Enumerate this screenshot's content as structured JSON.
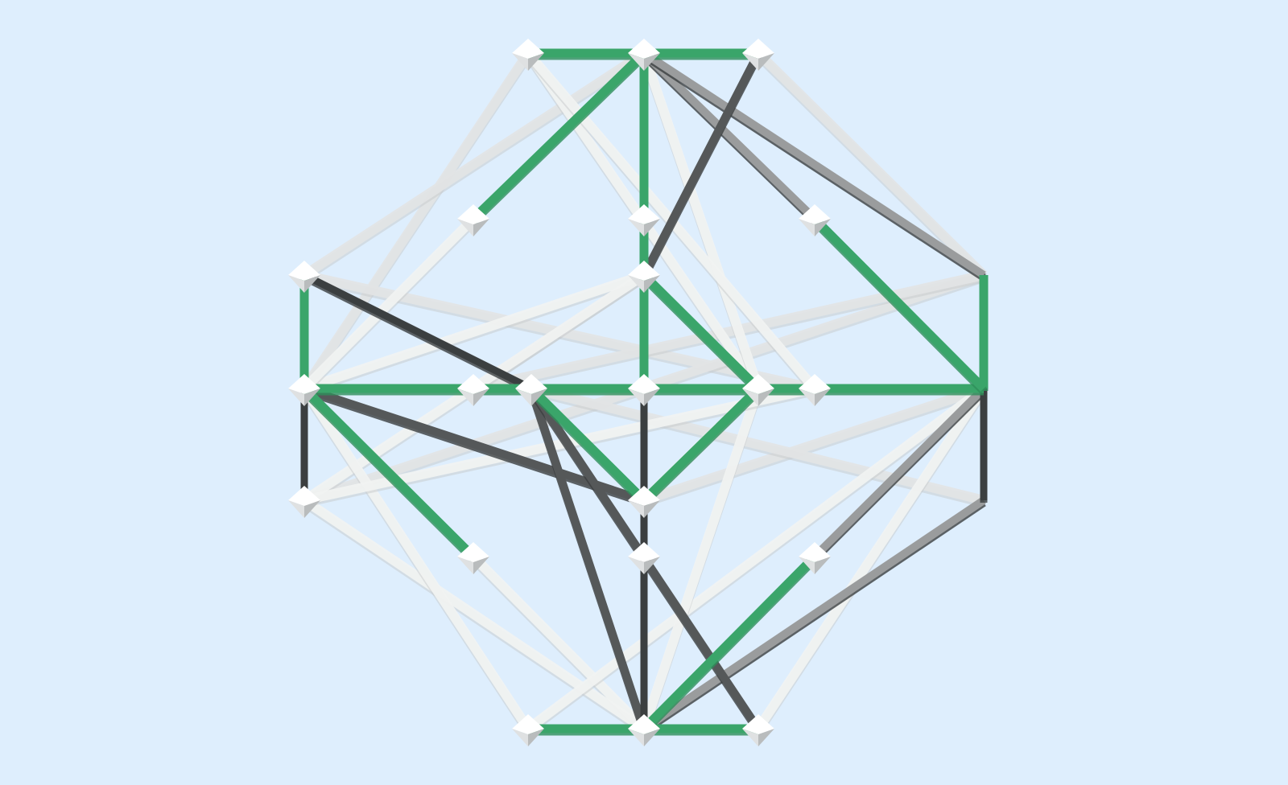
{
  "diagram": {
    "kind": "3d-strut-lattice",
    "background_color": "#deeefd",
    "colors": {
      "green_strut": "#3aa56a",
      "green_shade": "#2f8f5b",
      "white_strut": "#f2f4f3",
      "light_strut": "#e3e5e6",
      "mid_gray": "#9a9c9d",
      "dark_gray": "#555859",
      "darkest": "#3b3f40",
      "node_fill": "#ffffff",
      "node_shade": "#b9bcbd"
    },
    "icons": {
      "node": "octahedron-node-icon"
    },
    "nodes": [
      {
        "id": "T1"
      },
      {
        "id": "T2"
      },
      {
        "id": "T3"
      },
      {
        "id": "UL"
      },
      {
        "id": "UC"
      },
      {
        "id": "UR"
      },
      {
        "id": "C1"
      },
      {
        "id": "C2"
      },
      {
        "id": "C3"
      },
      {
        "id": "L1"
      },
      {
        "id": "L2"
      },
      {
        "id": "L3"
      },
      {
        "id": "M1"
      },
      {
        "id": "M2"
      },
      {
        "id": "M3"
      },
      {
        "id": "M4"
      },
      {
        "id": "M5"
      },
      {
        "id": "LL"
      },
      {
        "id": "LC"
      },
      {
        "id": "LR"
      },
      {
        "id": "D1"
      },
      {
        "id": "D2"
      },
      {
        "id": "D3"
      },
      {
        "id": "B1"
      },
      {
        "id": "B2"
      },
      {
        "id": "B3"
      }
    ],
    "edges": [
      {
        "from": "T1",
        "to": "T2",
        "tone": "green_strut"
      },
      {
        "from": "T2",
        "to": "T3",
        "tone": "green_strut"
      },
      {
        "from": "T2",
        "to": "UC",
        "tone": "green_strut"
      },
      {
        "from": "UC",
        "to": "C2",
        "tone": "green_strut"
      },
      {
        "from": "C2",
        "to": "M3",
        "tone": "green_strut"
      },
      {
        "from": "M3",
        "to": "D2",
        "tone": "darkest"
      },
      {
        "from": "D2",
        "to": "B2",
        "tone": "darkest"
      },
      {
        "from": "B1",
        "to": "B2",
        "tone": "green_strut"
      },
      {
        "from": "B2",
        "to": "B3",
        "tone": "green_strut"
      },
      {
        "from": "L1",
        "to": "L2",
        "tone": "green_strut"
      },
      {
        "from": "L2",
        "to": "L3",
        "tone": "darkest"
      },
      {
        "from": "L2",
        "to": "M1",
        "tone": "green_strut"
      },
      {
        "from": "M1",
        "to": "M2",
        "tone": "green_strut"
      },
      {
        "from": "M2",
        "to": "M3",
        "tone": "green_strut"
      },
      {
        "from": "M3",
        "to": "M4",
        "tone": "green_strut"
      },
      {
        "from": "M4",
        "to": "M5",
        "tone": "green_strut"
      },
      {
        "from": "M5",
        "to": "R2",
        "tone": "green_strut"
      },
      {
        "from": "R1",
        "to": "R2",
        "tone": "green_strut"
      },
      {
        "from": "R2",
        "to": "R3",
        "tone": "darkest"
      },
      {
        "from": "T2",
        "to": "UL",
        "tone": "green_strut"
      },
      {
        "from": "T2",
        "to": "C1",
        "tone": "mid_gray"
      },
      {
        "from": "T3",
        "to": "C1",
        "tone": "dark_gray"
      },
      {
        "from": "T2",
        "to": "UR",
        "tone": "mid_gray"
      },
      {
        "from": "UR",
        "to": "R2",
        "tone": "green_strut"
      },
      {
        "from": "C2",
        "to": "M4",
        "tone": "green_strut"
      },
      {
        "from": "C2",
        "to": "L2",
        "tone": "white_strut"
      },
      {
        "from": "C2",
        "to": "L3",
        "tone": "white_strut"
      },
      {
        "from": "C2",
        "to": "M1",
        "tone": "light_strut"
      },
      {
        "from": "M4",
        "to": "LC",
        "tone": "white_strut"
      },
      {
        "from": "LC",
        "to": "M2",
        "tone": "green_strut"
      },
      {
        "from": "LC",
        "to": "M4",
        "tone": "green_strut"
      },
      {
        "from": "LC",
        "to": "L2",
        "tone": "dark_gray"
      },
      {
        "from": "LC",
        "to": "R2",
        "tone": "light_strut"
      },
      {
        "from": "LC",
        "to": "D2",
        "tone": "darkest"
      },
      {
        "from": "L2",
        "to": "LL",
        "tone": "green_strut"
      },
      {
        "from": "R2",
        "to": "LR",
        "tone": "mid_gray"
      },
      {
        "from": "LR",
        "to": "B2",
        "tone": "green_strut"
      },
      {
        "from": "LL",
        "to": "B2",
        "tone": "white_strut"
      },
      {
        "from": "M2",
        "to": "B2",
        "tone": "dark_gray"
      },
      {
        "from": "M2",
        "to": "B3",
        "tone": "dark_gray"
      },
      {
        "from": "R3",
        "to": "B2",
        "tone": "mid_gray"
      },
      {
        "from": "L3",
        "to": "B2",
        "tone": "white_strut"
      },
      {
        "from": "T1",
        "to": "L2",
        "tone": "light_strut"
      },
      {
        "from": "T1",
        "to": "M4",
        "tone": "white_strut"
      },
      {
        "from": "T2",
        "to": "M4",
        "tone": "white_strut"
      },
      {
        "from": "T2",
        "to": "R1",
        "tone": "mid_gray"
      },
      {
        "from": "T2",
        "to": "L1",
        "tone": "light_strut"
      },
      {
        "from": "T3",
        "to": "R1",
        "tone": "light_strut"
      },
      {
        "from": "L1",
        "to": "M5",
        "tone": "light_strut"
      },
      {
        "from": "L1",
        "to": "M2",
        "tone": "darkest"
      },
      {
        "from": "R1",
        "to": "L3",
        "tone": "light_strut"
      },
      {
        "from": "R1",
        "to": "M1",
        "tone": "light_strut"
      },
      {
        "from": "L2",
        "to": "B1",
        "tone": "white_strut"
      },
      {
        "from": "R2",
        "to": "B1",
        "tone": "white_strut"
      },
      {
        "from": "R2",
        "to": "B3",
        "tone": "white_strut"
      },
      {
        "from": "M4",
        "to": "B2",
        "tone": "white_strut"
      },
      {
        "from": "R3",
        "to": "M2",
        "tone": "light_strut"
      },
      {
        "from": "UL",
        "to": "L2",
        "tone": "white_strut"
      },
      {
        "from": "T1",
        "to": "M5",
        "tone": "white_strut"
      },
      {
        "from": "L3",
        "to": "M5",
        "tone": "white_strut"
      }
    ]
  }
}
